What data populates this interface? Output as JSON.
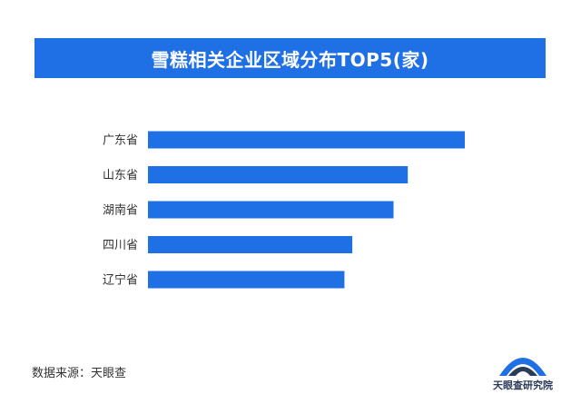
{
  "colors": {
    "accent": "#1f6fe5",
    "bar": "#1f6fe5",
    "logo_primary": "#1f6fe5",
    "logo_dark": "#2a3a5a"
  },
  "source_text": "数据来源：天眼查",
  "logo": {
    "icon": "tianyancha-logo-icon",
    "text": "天眼查研究院"
  },
  "chart_data": {
    "type": "bar",
    "orientation": "horizontal",
    "title": "雪糕相关企业区域分布TOP5(家)",
    "categories": [
      "广东省",
      "山东省",
      "湖南省",
      "四川省",
      "辽宁省"
    ],
    "values": [
      1000,
      820,
      775,
      645,
      620
    ],
    "xlabel": "",
    "ylabel": "",
    "xlim": [
      0,
      1000
    ],
    "grid": false,
    "legend": "none",
    "value_labels_shown": false
  }
}
